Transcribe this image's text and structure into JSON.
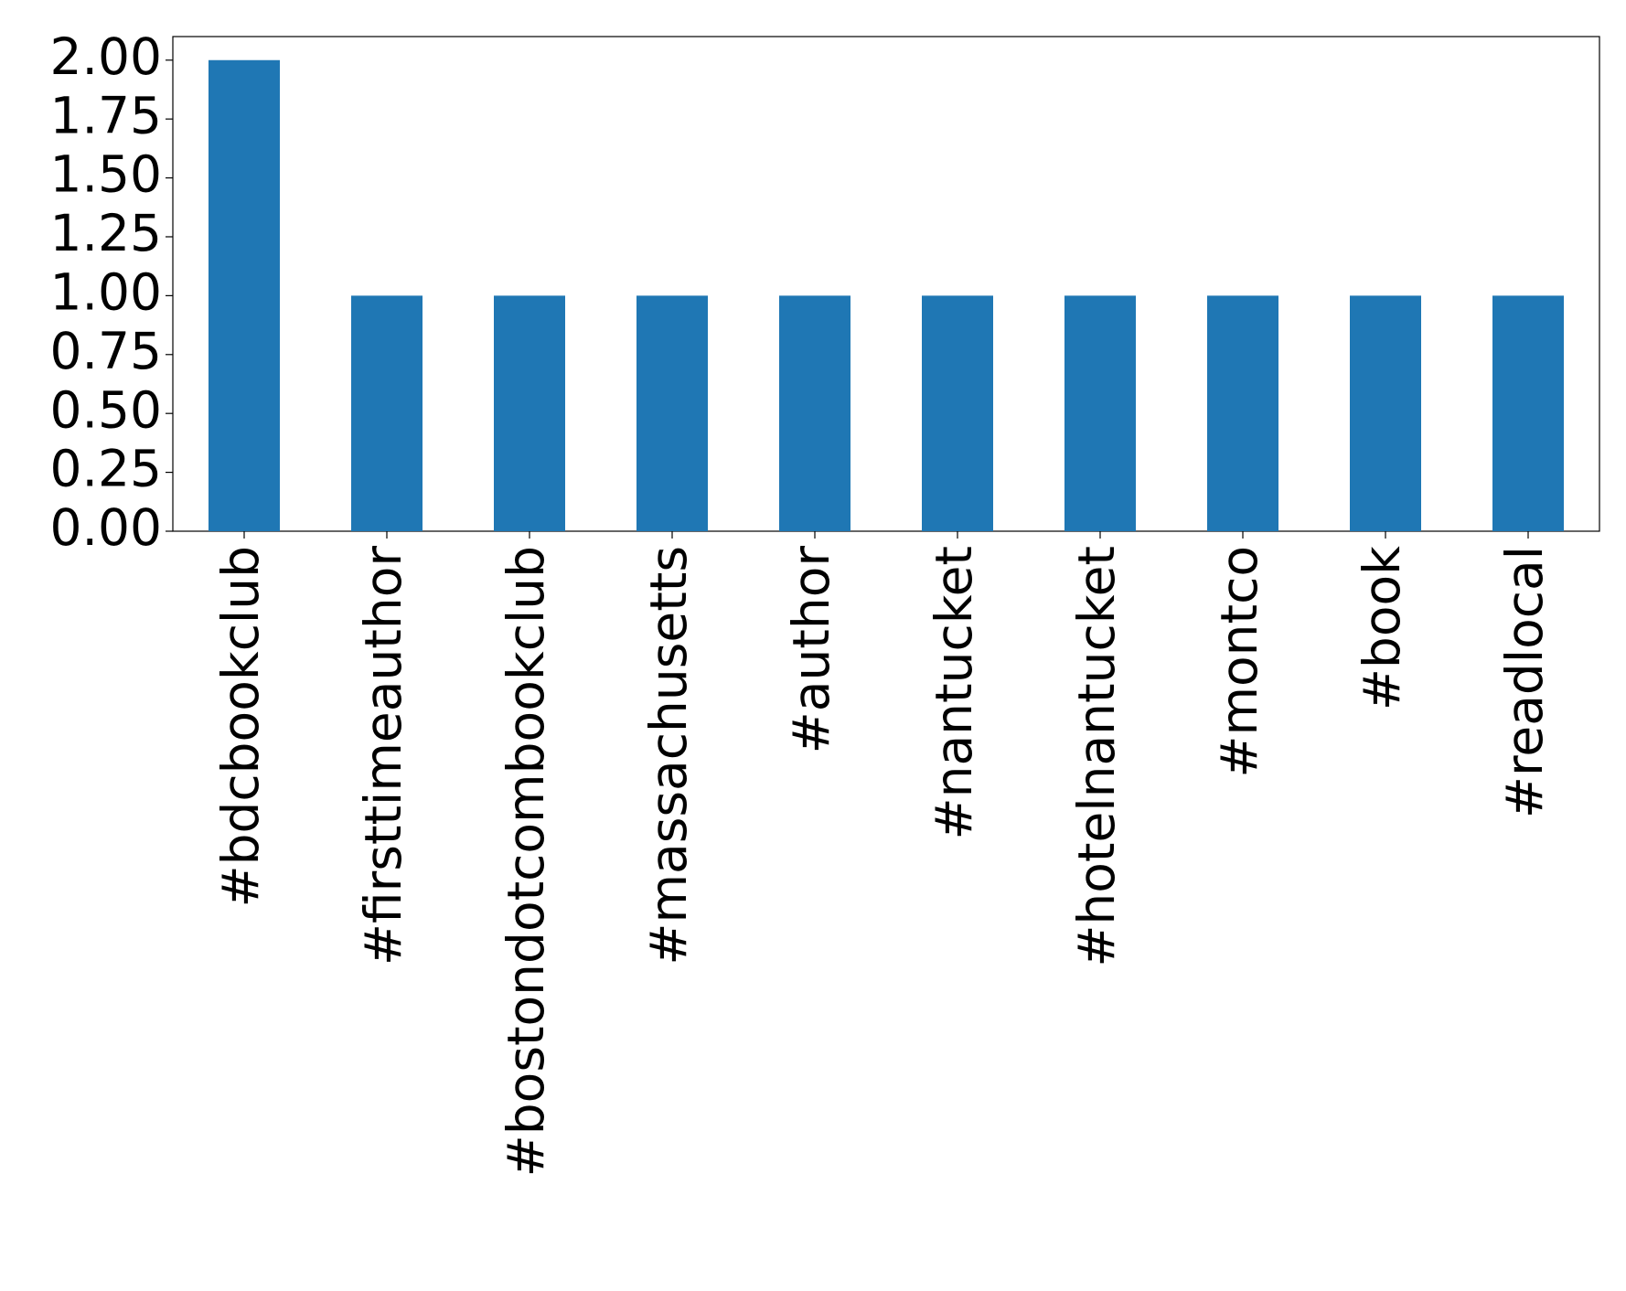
{
  "chart_data": {
    "type": "bar",
    "categories": [
      "#bdcbookclub",
      "#firsttimeauthor",
      "#bostondotcombookclub",
      "#massachusetts",
      "#author",
      "#nantucket",
      "#hotelnantucket",
      "#montco",
      "#book",
      "#readlocal"
    ],
    "values": [
      2,
      1,
      1,
      1,
      1,
      1,
      1,
      1,
      1,
      1
    ],
    "color": "#1f77b4",
    "ylim": [
      0,
      2.1
    ],
    "yticks": [
      {
        "value": 0,
        "label": "0.00"
      },
      {
        "value": 0.25,
        "label": "0.25"
      },
      {
        "value": 0.5,
        "label": "0.50"
      },
      {
        "value": 0.75,
        "label": "0.75"
      },
      {
        "value": 1,
        "label": "1.00"
      },
      {
        "value": 1.25,
        "label": "1.25"
      },
      {
        "value": 1.5,
        "label": "1.50"
      },
      {
        "value": 1.75,
        "label": "1.75"
      },
      {
        "value": 2,
        "label": "2.00"
      }
    ],
    "grid": false
  }
}
